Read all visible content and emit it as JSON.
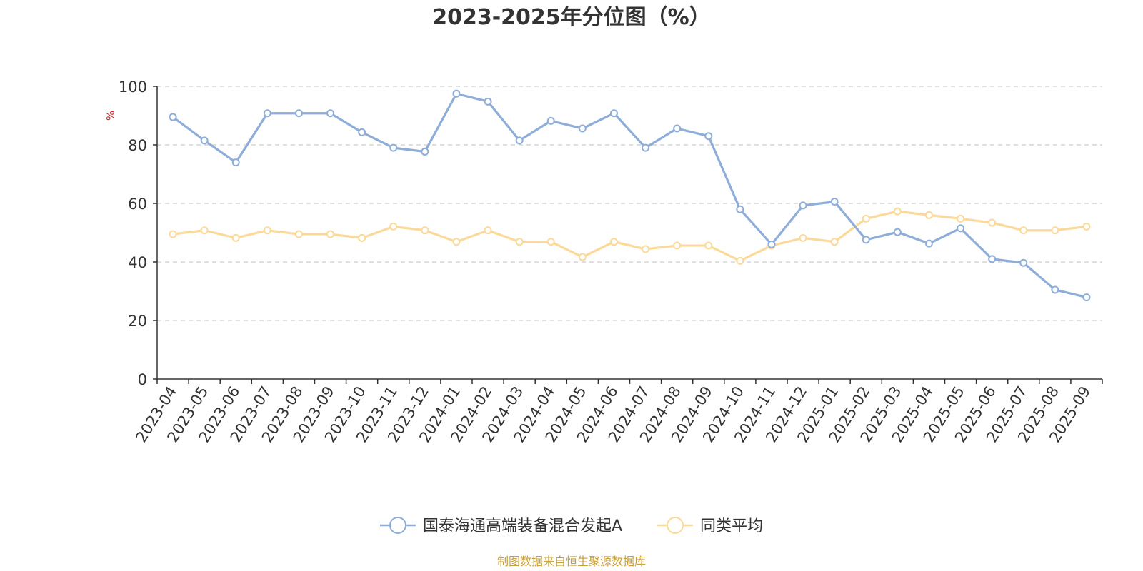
{
  "chart_data": {
    "type": "line",
    "title": "2023-2025年分位图（%）",
    "ylabel": "%",
    "ylim": [
      0,
      100
    ],
    "yticks": [
      "0",
      "20",
      "40",
      "60",
      "80",
      "100"
    ],
    "grid": "horizontal-dashed",
    "legend_position": "bottom-center",
    "categories": [
      "2023-04",
      "2023-05",
      "2023-06",
      "2023-07",
      "2023-08",
      "2023-09",
      "2023-10",
      "2023-11",
      "2023-12",
      "2024-01",
      "2024-02",
      "2024-03",
      "2024-04",
      "2024-05",
      "2024-06",
      "2024-07",
      "2024-08",
      "2024-09",
      "2024-10",
      "2024-11",
      "2024-12",
      "2025-01",
      "2025-02",
      "2025-03",
      "2025-04",
      "2025-05",
      "2025-06",
      "2025-07",
      "2025-08",
      "2025-09"
    ],
    "series": [
      {
        "name": "国泰海通高端装备混合发起A",
        "color": "#8eadd8",
        "values": [
          89.5,
          81.5,
          74,
          90.8,
          90.8,
          90.8,
          84.3,
          79,
          77.7,
          97.5,
          94.8,
          81.5,
          88.2,
          85.6,
          90.8,
          79,
          85.6,
          83,
          58,
          46,
          59.3,
          60.6,
          47.6,
          50.2,
          46.3,
          51.5,
          41,
          39.7,
          30.5,
          27.9
        ]
      },
      {
        "name": "同类平均",
        "color": "#fbd99a",
        "values": [
          49.5,
          50.8,
          48.2,
          50.8,
          49.5,
          49.5,
          48.2,
          52.1,
          50.8,
          46.9,
          50.8,
          46.9,
          46.9,
          41.7,
          46.9,
          44.4,
          45.6,
          45.6,
          40.4,
          45.6,
          48.2,
          46.9,
          54.8,
          57.3,
          56,
          54.8,
          53.4,
          50.8,
          50.8,
          52.1
        ]
      }
    ]
  },
  "footer": {
    "source": "制图数据来自恒生聚源数据库",
    "source_color": "#c8a038"
  },
  "colors": {
    "unit_label": "#e02020",
    "axis": "#333333",
    "grid": "#cccccc"
  }
}
